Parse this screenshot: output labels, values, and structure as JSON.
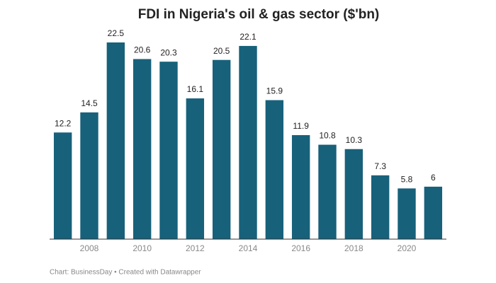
{
  "chart_data": {
    "type": "bar",
    "title": "FDI in Nigeria's oil & gas sector ($'bn)",
    "categories": [
      null,
      "2008",
      null,
      "2010",
      null,
      "2012",
      null,
      "2014",
      null,
      "2016",
      null,
      "2018",
      null,
      "2020",
      null
    ],
    "values": [
      12.2,
      14.5,
      22.5,
      20.6,
      20.3,
      16.1,
      20.5,
      22.1,
      15.9,
      11.9,
      10.8,
      10.3,
      7.3,
      5.8,
      6
    ],
    "color": "#17617b",
    "footer": "Chart: BusinessDay • Created with Datawrapper"
  }
}
